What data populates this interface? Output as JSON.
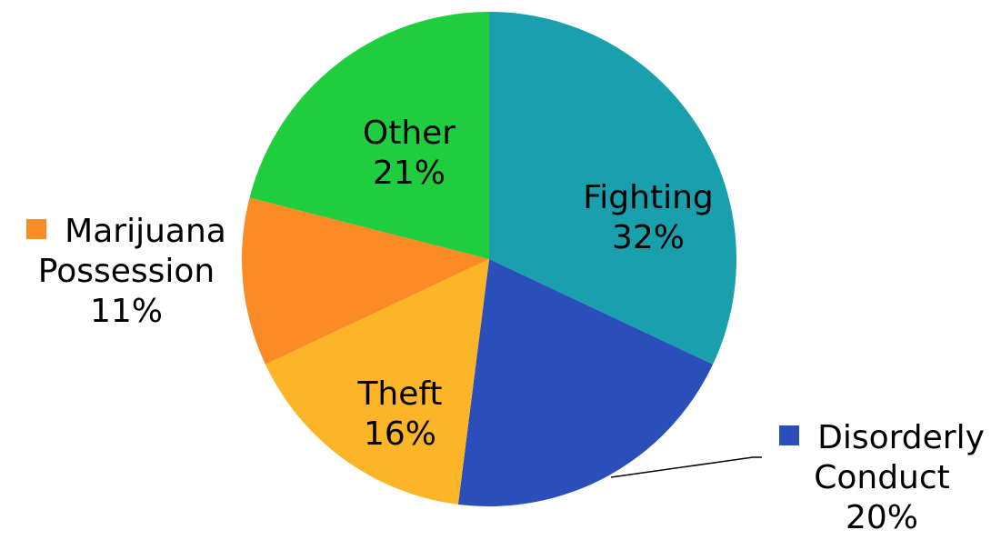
{
  "chart_data": {
    "type": "pie",
    "slices": [
      {
        "label": "Fighting",
        "value": 32,
        "value_label": "32%",
        "color": "#1a9fac"
      },
      {
        "label": "Disorderly Conduct",
        "value": 20,
        "value_label": "20%",
        "color": "#2b4fba"
      },
      {
        "label": "Theft",
        "value": 16,
        "value_label": "16%",
        "color": "#fbb527"
      },
      {
        "label": "Marijuana Possession",
        "value": 11,
        "value_label": "11%",
        "color": "#fb8b24"
      },
      {
        "label": "Other",
        "value": 21,
        "value_label": "21%",
        "color": "#1fcd3e"
      }
    ],
    "label_lines": {
      "fighting": "Fighting",
      "disorderly_1": "Disorderly",
      "disorderly_2": "Conduct",
      "theft": "Theft",
      "marijuana_1": "Marijuana",
      "marijuana_2": "Possession",
      "other": "Other"
    },
    "title": "",
    "legend": "none",
    "start_angle_deg": 0,
    "direction": "clockwise"
  }
}
